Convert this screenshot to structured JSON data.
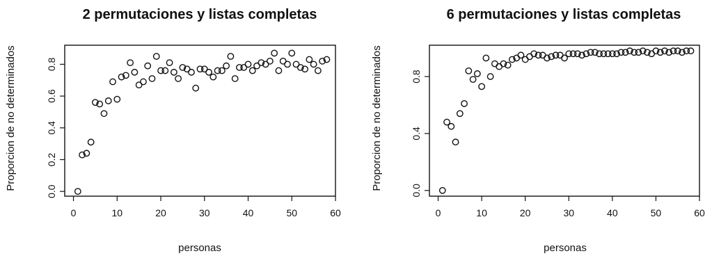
{
  "chart_data": [
    {
      "type": "scatter",
      "title": "2 permutaciones y listas completas",
      "xlabel": "personas",
      "ylabel": "Proporcion de no determinados",
      "xlim": [
        0,
        60
      ],
      "ylim": [
        0,
        0.9
      ],
      "xticks": [
        "0",
        "10",
        "20",
        "30",
        "40",
        "50",
        "60"
      ],
      "yticks": [
        "0.0",
        "0.2",
        "0.4",
        "0.6",
        "0.8"
      ],
      "grid": false,
      "x": [
        1,
        2,
        3,
        4,
        5,
        6,
        7,
        8,
        9,
        10,
        11,
        12,
        13,
        14,
        15,
        16,
        17,
        18,
        19,
        20,
        21,
        22,
        23,
        24,
        25,
        26,
        27,
        28,
        29,
        30,
        31,
        32,
        33,
        34,
        35,
        36,
        37,
        38,
        39,
        40,
        41,
        42,
        43,
        44,
        45,
        46,
        47,
        48,
        49,
        50,
        51,
        52,
        53,
        54,
        55,
        56,
        57,
        58
      ],
      "y": [
        0.0,
        0.23,
        0.24,
        0.31,
        0.56,
        0.55,
        0.49,
        0.57,
        0.69,
        0.58,
        0.72,
        0.73,
        0.81,
        0.75,
        0.67,
        0.69,
        0.79,
        0.71,
        0.85,
        0.76,
        0.76,
        0.81,
        0.75,
        0.71,
        0.78,
        0.77,
        0.75,
        0.65,
        0.77,
        0.77,
        0.75,
        0.72,
        0.76,
        0.76,
        0.79,
        0.85,
        0.71,
        0.78,
        0.78,
        0.8,
        0.76,
        0.79,
        0.81,
        0.8,
        0.82,
        0.87,
        0.76,
        0.82,
        0.8,
        0.87,
        0.8,
        0.78,
        0.77,
        0.83,
        0.8,
        0.76,
        0.82,
        0.83
      ]
    },
    {
      "type": "scatter",
      "title": "6 permutaciones y listas completas",
      "xlabel": "personas",
      "ylabel": "Proporcion de no determinados",
      "xlim": [
        0,
        60
      ],
      "ylim": [
        0,
        1.0
      ],
      "xticks": [
        "0",
        "10",
        "20",
        "30",
        "40",
        "50",
        "60"
      ],
      "yticks": [
        "0.0",
        "0.4",
        "0.8"
      ],
      "grid": false,
      "x": [
        1,
        2,
        3,
        4,
        5,
        6,
        7,
        8,
        9,
        10,
        11,
        12,
        13,
        14,
        15,
        16,
        17,
        18,
        19,
        20,
        21,
        22,
        23,
        24,
        25,
        26,
        27,
        28,
        29,
        30,
        31,
        32,
        33,
        34,
        35,
        36,
        37,
        38,
        39,
        40,
        41,
        42,
        43,
        44,
        45,
        46,
        47,
        48,
        49,
        50,
        51,
        52,
        53,
        54,
        55,
        56,
        57,
        58
      ],
      "y": [
        0.0,
        0.48,
        0.45,
        0.34,
        0.54,
        0.61,
        0.84,
        0.78,
        0.82,
        0.73,
        0.93,
        0.8,
        0.89,
        0.87,
        0.89,
        0.88,
        0.92,
        0.93,
        0.95,
        0.92,
        0.94,
        0.96,
        0.95,
        0.95,
        0.93,
        0.94,
        0.95,
        0.95,
        0.93,
        0.96,
        0.96,
        0.96,
        0.95,
        0.96,
        0.97,
        0.97,
        0.96,
        0.96,
        0.96,
        0.96,
        0.96,
        0.97,
        0.97,
        0.98,
        0.97,
        0.97,
        0.98,
        0.97,
        0.96,
        0.98,
        0.97,
        0.98,
        0.97,
        0.98,
        0.98,
        0.97,
        0.98,
        0.98
      ]
    }
  ]
}
